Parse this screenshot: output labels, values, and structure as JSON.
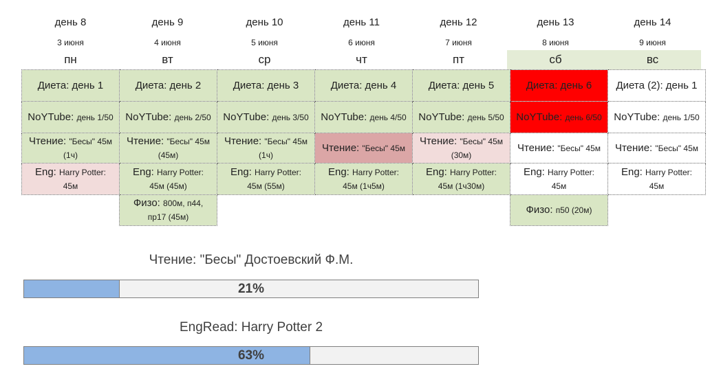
{
  "days": [
    {
      "day": "день 8",
      "date": "3 июня",
      "dow": "пн"
    },
    {
      "day": "день 9",
      "date": "4 июня",
      "dow": "вт"
    },
    {
      "day": "день 10",
      "date": "5 июня",
      "dow": "ср"
    },
    {
      "day": "день 11",
      "date": "6 июня",
      "dow": "чт"
    },
    {
      "day": "день 12",
      "date": "7 июня",
      "dow": "пт"
    },
    {
      "day": "день 13",
      "date": "8 июня",
      "dow": "сб"
    },
    {
      "day": "день 14",
      "date": "9 июня",
      "dow": "вс"
    }
  ],
  "schedule": {
    "diet": [
      {
        "label": "Диета:",
        "detail": "день 1"
      },
      {
        "label": "Диета:",
        "detail": "день 2"
      },
      {
        "label": "Диета:",
        "detail": "день 3"
      },
      {
        "label": "Диета:",
        "detail": "день 4"
      },
      {
        "label": "Диета:",
        "detail": "день 5"
      },
      {
        "label": "Диета:",
        "detail": "день 6"
      },
      {
        "label": "Диета (2):",
        "detail": "день 1"
      }
    ],
    "noytube": [
      {
        "label": "NoYTube:",
        "detail": "день 1/50"
      },
      {
        "label": "NoYTube:",
        "detail": "день 2/50"
      },
      {
        "label": "NoYTube:",
        "detail": "день 3/50"
      },
      {
        "label": "NoYTube:",
        "detail": "день 4/50"
      },
      {
        "label": "NoYTube:",
        "detail": "день 5/50"
      },
      {
        "label": "NoYTube:",
        "detail": "день 6/50"
      },
      {
        "label": "NoYTube:",
        "detail": "день 1/50"
      }
    ],
    "reading": [
      {
        "label": "Чтение:",
        "detail": "\"Бесы\" 45м",
        "extra": "(1ч)"
      },
      {
        "label": "Чтение:",
        "detail": "\"Бесы\" 45м",
        "extra": "(45м)"
      },
      {
        "label": "Чтение:",
        "detail": "\"Бесы\" 45м",
        "extra": "(1ч)"
      },
      {
        "label": "Чтение:",
        "detail": "\"Бесы\" 45м",
        "extra": ""
      },
      {
        "label": "Чтение:",
        "detail": "\"Бесы\" 45м",
        "extra": "(30м)"
      },
      {
        "label": "Чтение:",
        "detail": "\"Бесы\" 45м",
        "extra": ""
      },
      {
        "label": "Чтение:",
        "detail": "\"Бесы\" 45м",
        "extra": ""
      }
    ],
    "eng": [
      {
        "label": "Eng:",
        "detail": "Harry Potter:",
        "extra": "45м"
      },
      {
        "label": "Eng:",
        "detail": "Harry Potter:",
        "extra": "45м (45м)"
      },
      {
        "label": "Eng:",
        "detail": "Harry Potter:",
        "extra": "45м (55м)"
      },
      {
        "label": "Eng:",
        "detail": "Harry Potter:",
        "extra": "45м (1ч5м)"
      },
      {
        "label": "Eng:",
        "detail": "Harry Potter:",
        "extra": "45м (1ч30м)"
      },
      {
        "label": "Eng:",
        "detail": "Harry Potter:",
        "extra": "45м"
      },
      {
        "label": "Eng:",
        "detail": "Harry Potter:",
        "extra": "45м"
      }
    ],
    "fizo_tue": {
      "label": "Физо:",
      "line1": "800м, п44,",
      "line2": "пр17 (45м)"
    },
    "fizo_sat": {
      "label": "Физо:",
      "detail": "п50 (20м)"
    }
  },
  "colors": {
    "done_green": "#d9e6c4",
    "partial_pink": "#f2dcdb",
    "missed_rose": "#dba6a6",
    "failed_red": "#ff0000",
    "weekend_header": "#e4ecd6",
    "progress_fill": "#8eb4e3"
  },
  "progress": [
    {
      "title": "Чтение: \"Бесы\" Достоевский Ф.М.",
      "value": 0.21,
      "label": "21%"
    },
    {
      "title": "EngRead: Harry Potter 2",
      "value": 0.63,
      "label": "63%"
    }
  ]
}
